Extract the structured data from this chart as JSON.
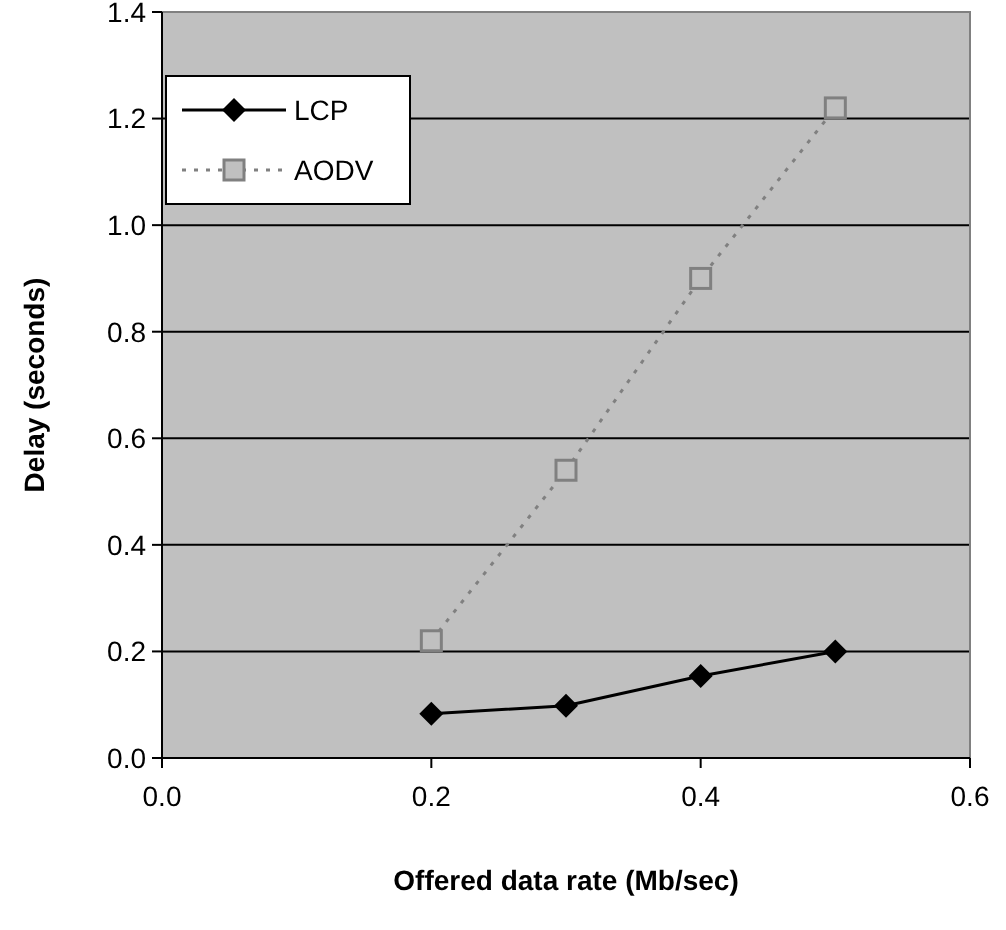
{
  "chart_data": {
    "type": "line",
    "xlabel": "Offered data rate (Mb/sec)",
    "ylabel": "Delay (seconds)",
    "xlim": [
      0,
      0.6
    ],
    "xticks": [
      {
        "value": 0,
        "label": "0.0"
      },
      {
        "value": 0.2,
        "label": "0.2"
      },
      {
        "value": 0.4,
        "label": "0.4"
      },
      {
        "value": 0.6,
        "label": "0.6"
      }
    ],
    "ylim": [
      0,
      1.4
    ],
    "yticks": [
      {
        "value": 0,
        "label": "0.0"
      },
      {
        "value": 0.2,
        "label": "0.2"
      },
      {
        "value": 0.4,
        "label": "0.4"
      },
      {
        "value": 0.6,
        "label": "0.6"
      },
      {
        "value": 0.8,
        "label": "0.8"
      },
      {
        "value": 1,
        "label": "1.0"
      },
      {
        "value": 1.2,
        "label": "1.2"
      },
      {
        "value": 1.4,
        "label": "1.4"
      }
    ],
    "grid": "y",
    "legend": "top left",
    "x": [
      0.2,
      0.3,
      0.4,
      0.5
    ],
    "series": [
      {
        "name": "LCP",
        "color": "#000000",
        "values": [
          0.083,
          0.098,
          0.154,
          0.2
        ],
        "marker": "diamond",
        "line_style": "solid"
      },
      {
        "name": "AODV",
        "color": "#808080",
        "values": [
          0.22,
          0.54,
          0.9,
          1.22
        ],
        "marker": "square",
        "line_style": "dotted"
      }
    ]
  }
}
